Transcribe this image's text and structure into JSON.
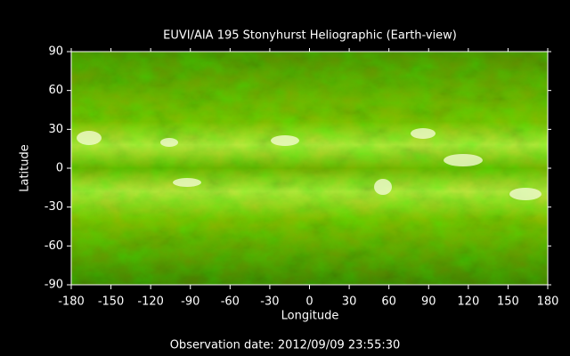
{
  "chart_data": {
    "type": "image",
    "title": "EUVI/AIA 195 Stonyhurst Heliographic (Earth-view)",
    "xlabel": "Longitude",
    "ylabel": "Latitude",
    "annotation": "Observation date: 2012/09/09 23:55:30",
    "xlim": [
      -180,
      180
    ],
    "ylim": [
      -90,
      90
    ],
    "xticks": [
      -180,
      -150,
      -120,
      -90,
      -60,
      -30,
      0,
      30,
      60,
      90,
      120,
      150,
      180
    ],
    "yticks": [
      -90,
      -60,
      -30,
      0,
      30,
      60,
      90
    ]
  }
}
